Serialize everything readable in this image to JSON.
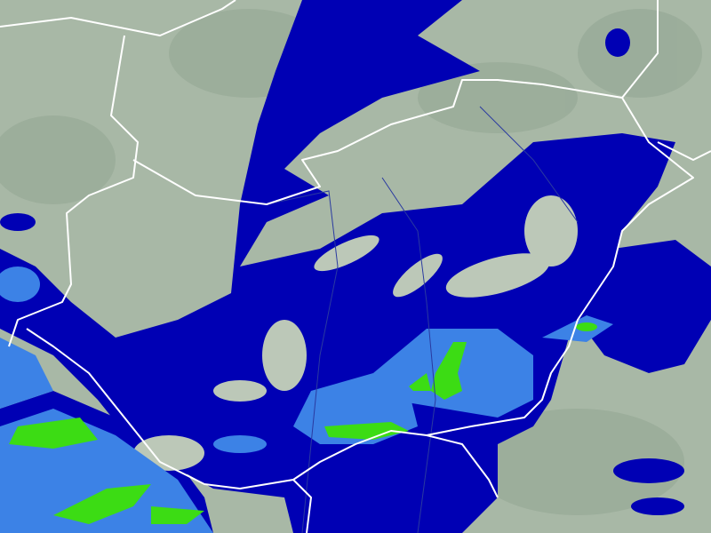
{
  "map": {
    "type": "precipitation-radar",
    "colors": {
      "terrain": "#a8b8a6",
      "terrain_dark": "#94a694",
      "terrain_light": "#bcc8b8",
      "precip_light": "#0000b4",
      "precip_moderate": "#3c82e6",
      "precip_heavy": "#3cdc14",
      "borders": "#ffffff",
      "rivers": "#2a3aa0"
    }
  }
}
